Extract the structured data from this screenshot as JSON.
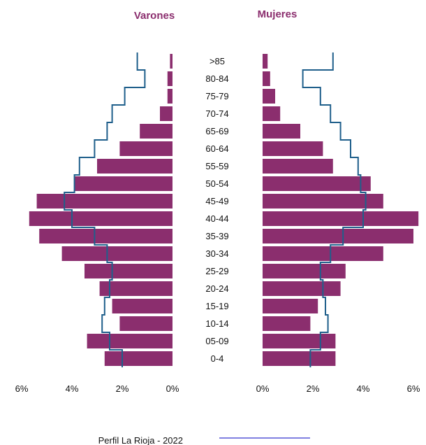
{
  "chart_data": {
    "type": "bar",
    "subtype": "population-pyramid",
    "header_male": "Varones",
    "header_female": "Mujeres",
    "categories": [
      ">85",
      "80-84",
      "75-79",
      "70-74",
      "65-69",
      "60-64",
      "55-59",
      "50-54",
      "45-49",
      "40-44",
      "35-39",
      "30-34",
      "25-29",
      "20-24",
      "15-19",
      "10-14",
      "05-09",
      "0-4"
    ],
    "male_values": [
      0.1,
      0.2,
      0.2,
      0.5,
      1.3,
      2.1,
      3.0,
      3.9,
      5.4,
      5.7,
      5.3,
      4.4,
      3.5,
      2.9,
      2.4,
      2.1,
      3.4,
      2.7
    ],
    "female_values": [
      0.2,
      0.3,
      0.5,
      0.7,
      1.5,
      2.4,
      2.8,
      4.3,
      4.8,
      6.2,
      6.0,
      4.8,
      3.3,
      3.1,
      2.2,
      1.9,
      2.9,
      2.9
    ],
    "male_profile": [
      1.4,
      1.1,
      1.9,
      2.4,
      2.6,
      3.1,
      3.7,
      3.9,
      4.3,
      4.0,
      3.1,
      2.6,
      2.4,
      2.5,
      2.7,
      2.8,
      2.5,
      2.0
    ],
    "female_profile": [
      2.8,
      1.6,
      2.3,
      2.7,
      3.1,
      3.5,
      3.8,
      3.9,
      4.1,
      4.0,
      3.2,
      2.7,
      2.3,
      2.4,
      2.5,
      2.6,
      2.3,
      1.9
    ],
    "x_ticks_male": [
      "6%",
      "4%",
      "2%",
      "0%"
    ],
    "x_ticks_female": [
      "0%",
      "2%",
      "4%",
      "6%"
    ],
    "xlim": [
      0,
      6
    ],
    "legend_label": "Perfil La Rioja - 2022",
    "bar_color": "#8b2e6e",
    "line_color": "#1f5f8b",
    "header_color": "#8b2e6e",
    "legend_line_color": "#8080e0"
  }
}
